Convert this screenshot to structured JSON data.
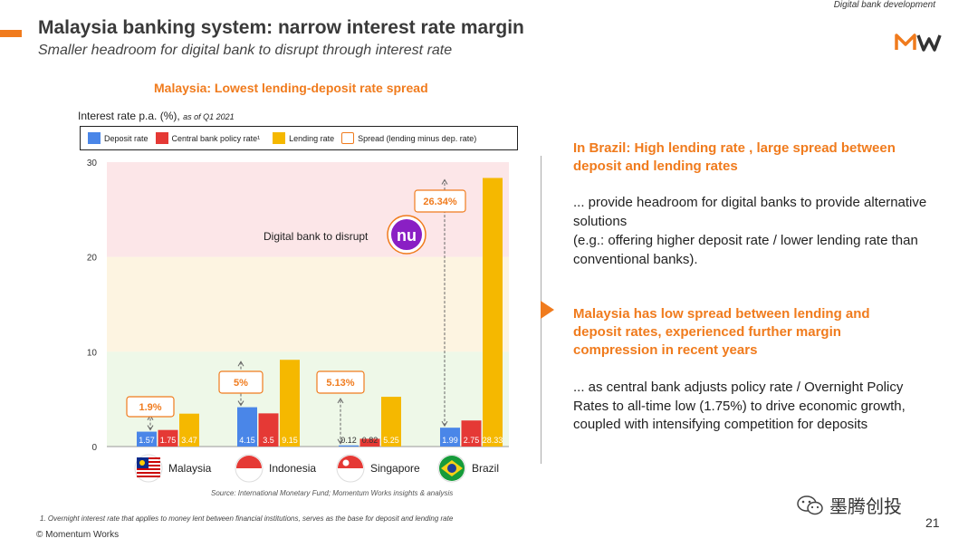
{
  "header": {
    "tag": "Digital bank development",
    "title": "Malaysia banking system: narrow interest rate margin",
    "subtitle": "Smaller headroom for digital bank to disrupt through interest rate"
  },
  "chart_data": {
    "type": "bar",
    "title": "Malaysia: Lowest lending-deposit rate spread",
    "ylabel": "Interest rate p.a. (%),",
    "ylabel_note": "as of Q1 2021",
    "ylim": [
      0,
      30
    ],
    "yticks": [
      0,
      10,
      20,
      30
    ],
    "categories": [
      "Malaysia",
      "Indonesia",
      "Singapore",
      "Brazil"
    ],
    "series": [
      {
        "name": "Deposit rate",
        "color": "#4a86e8",
        "values": [
          1.57,
          4.15,
          0.12,
          1.99
        ],
        "labels": [
          "1.57",
          "4.15",
          "0.12",
          "1.99"
        ]
      },
      {
        "name": "Central bank policy rate¹",
        "color": "#e53935",
        "values": [
          1.75,
          3.5,
          0.82,
          2.75
        ],
        "labels": [
          "1.75",
          "3.5",
          "0.82",
          "2.75"
        ]
      },
      {
        "name": "Lending rate",
        "color": "#f5b800",
        "values": [
          3.47,
          9.15,
          5.25,
          28.33
        ],
        "labels": [
          "3.47",
          "9.15",
          "5.25",
          "28.33"
        ]
      }
    ],
    "spread": {
      "name": "Spread (lending minus dep. rate)",
      "labels": [
        "1.9%",
        "5%",
        "5.13%",
        "26.34%"
      ]
    },
    "bands": [
      {
        "from": 0,
        "to": 10,
        "color": "#eef8e8"
      },
      {
        "from": 10,
        "to": 20,
        "color": "#fdf4e1"
      },
      {
        "from": 20,
        "to": 30,
        "color": "#fce6e8"
      }
    ],
    "annotation": "Digital bank to disrupt",
    "badge_text": "nu",
    "source": "Source: International Monetary Fund; Momentum Works insights & analysis"
  },
  "footnote": "1.  Overnight interest rate that applies to money lent between financial institutions, serves as the base for deposit and lending rate",
  "copyright": "© Momentum Works",
  "right": {
    "h1": "In Brazil: High lending rate , large spread between deposit and lending rates",
    "p1": "... provide headroom for digital banks to provide alternative solutions",
    "p1b": "(e.g.: offering higher deposit rate / lower lending rate than conventional banks).",
    "h2": "Malaysia has low spread between lending and deposit rates, experienced further margin compression in recent years",
    "p2": "... as central bank adjusts policy rate / Overnight Policy Rates to all-time low (1.75%) to drive economic growth, coupled with intensifying competition for deposits"
  },
  "watermark": "墨腾创投",
  "page_number": "21"
}
